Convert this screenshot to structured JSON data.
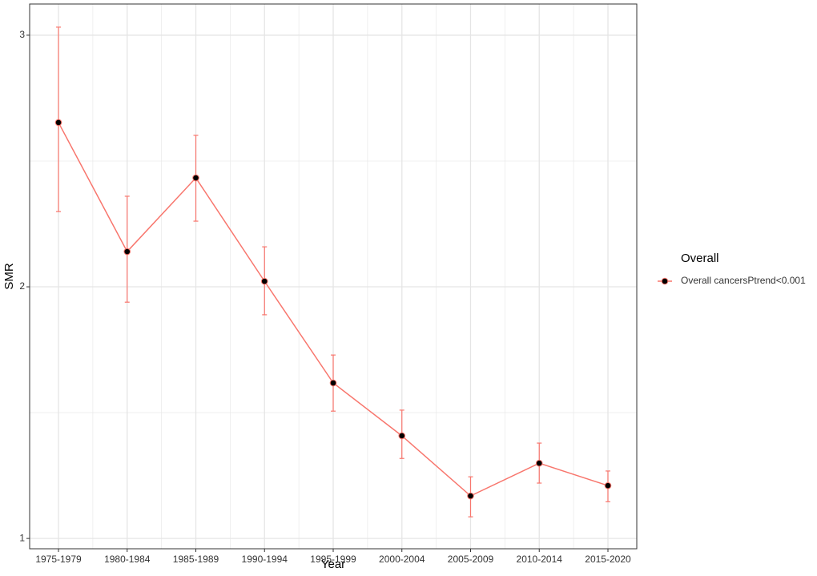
{
  "chart_data": {
    "type": "line",
    "x_label": "Year",
    "y_label": "SMR",
    "categories": [
      "1975-1979",
      "1980-1984",
      "1985-1989",
      "1990-1994",
      "1995-1999",
      "2000-2004",
      "2005-2009",
      "2010-2014",
      "2015-2020"
    ],
    "series": [
      {
        "name": "Overall cancersPtrend<0.001",
        "color": "#f8766d",
        "values": [
          2.653,
          2.14,
          2.433,
          2.022,
          1.618,
          1.408,
          1.169,
          1.299,
          1.21
        ],
        "lower": [
          2.299,
          1.939,
          2.261,
          1.889,
          1.506,
          1.318,
          1.086,
          1.22,
          1.146
        ],
        "upper": [
          3.032,
          2.36,
          2.602,
          2.159,
          1.729,
          1.51,
          1.245,
          1.379,
          1.268
        ]
      }
    ],
    "legend_title": "Overall",
    "legend": "right",
    "ylim": [
      0.959,
      3.124
    ],
    "yticks": [
      1,
      2,
      3
    ],
    "y_minor_ticks": [
      1.5,
      2.5
    ],
    "grid": true
  }
}
